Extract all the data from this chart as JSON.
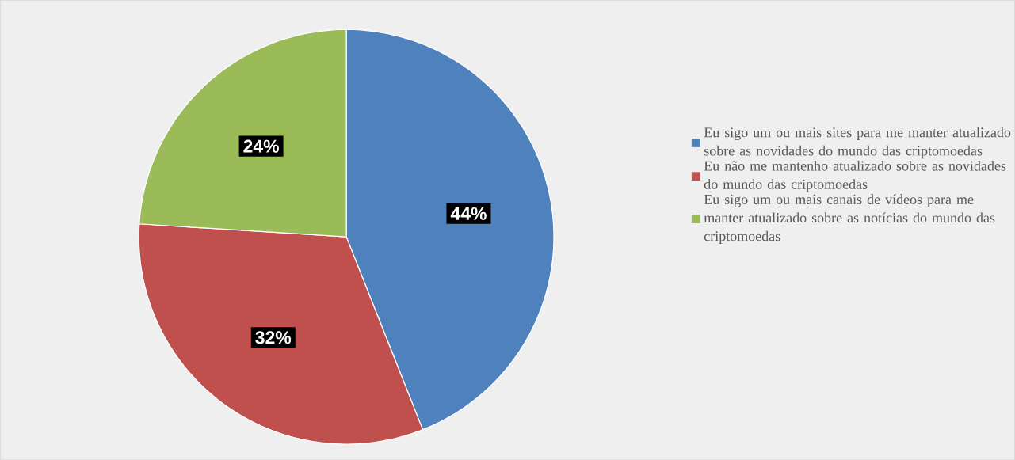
{
  "chart_data": {
    "type": "pie",
    "categories": [
      "Eu sigo um ou mais sites para me manter atualizado sobre as novidades do mundo das criptomoedas",
      "Eu não me mantenho atualizado sobre as novidades do mundo das criptomoedas",
      "Eu sigo um ou mais canais de vídeos para me manter atualizado sobre as notícias do mundo das criptomoedas"
    ],
    "values": [
      44,
      32,
      24
    ],
    "value_labels": [
      "44%",
      "32%",
      "24%"
    ],
    "colors": [
      "#4f81bd",
      "#c0504d",
      "#9bbb59"
    ],
    "legend": "right"
  }
}
